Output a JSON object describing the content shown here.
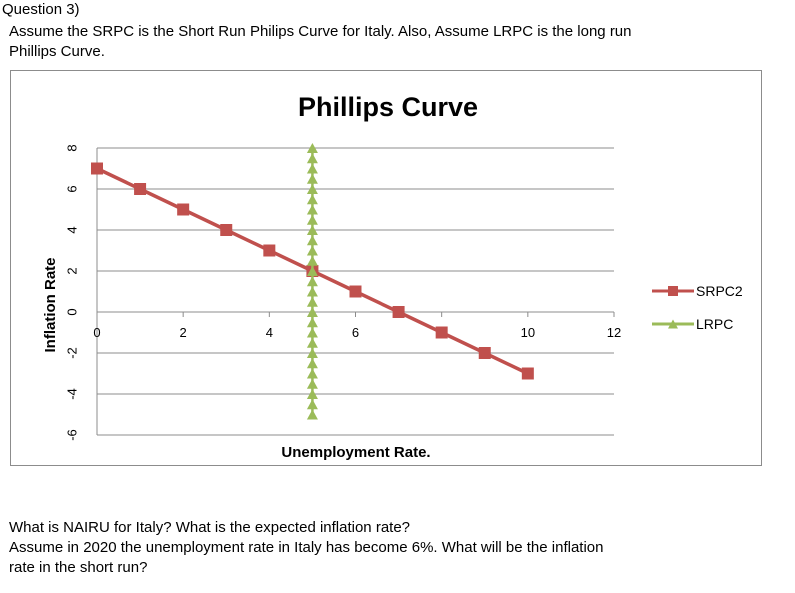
{
  "question": {
    "heading": "Question 3)",
    "intro_lines": [
      "Assume the SRPC is the Short Run Philips Curve for Italy. Also, Assume LRPC is the long run",
      "Phillips Curve."
    ],
    "footer_lines": [
      "What is NAIRU for Italy? What is the expected inflation rate?",
      "Assume in 2020 the unemployment rate in Italy has become 6%. What will be the inflation",
      "rate in the short run?"
    ]
  },
  "chart_data": {
    "type": "line",
    "title": "Phillips Curve",
    "xlabel": "Unemployment Rate.",
    "ylabel": "Inflation Rate",
    "xlim": [
      0,
      12
    ],
    "ylim": [
      -6,
      8
    ],
    "x_ticks": [
      "0",
      "2",
      "4",
      "6",
      "8",
      "10",
      "12"
    ],
    "y_ticks": [
      "-6",
      "-4",
      "-2",
      "0",
      "2",
      "4",
      "6",
      "8"
    ],
    "grid": "horizontal",
    "legend_position": "right",
    "series": [
      {
        "name": "SRPC2",
        "color": "#c0504d",
        "marker": "square",
        "x": [
          0,
          1,
          2,
          3,
          4,
          5,
          6,
          7,
          8,
          9,
          10
        ],
        "y": [
          7,
          6,
          5,
          4,
          3,
          2,
          1,
          0,
          -1,
          -2,
          -3
        ]
      },
      {
        "name": "LRPC",
        "color": "#9bbb59",
        "marker": "triangle",
        "x": [
          5,
          5,
          5,
          5,
          5,
          5,
          5,
          5,
          5,
          5,
          5,
          5,
          5,
          5,
          5,
          5,
          5,
          5,
          5,
          5,
          5,
          5,
          5,
          5,
          5,
          5,
          5
        ],
        "y": [
          8,
          7.5,
          7,
          6.5,
          6,
          5.5,
          5,
          4.5,
          4,
          3.5,
          3,
          2.5,
          2,
          1.5,
          1,
          0.5,
          0,
          -0.5,
          -1,
          -1.5,
          -2,
          -2.5,
          -3,
          -3.5,
          -4,
          -4.5,
          -5
        ]
      }
    ]
  }
}
